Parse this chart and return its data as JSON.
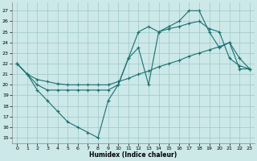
{
  "xlabel": "Humidex (Indice chaleur)",
  "bg_color": "#cce8e8",
  "grid_color": "#9ec8c8",
  "line_color": "#1a7070",
  "xlim": [
    -0.5,
    23.5
  ],
  "ylim": [
    14.5,
    27.8
  ],
  "yticks": [
    15,
    16,
    17,
    18,
    19,
    20,
    21,
    22,
    23,
    24,
    25,
    26,
    27
  ],
  "xticks": [
    0,
    1,
    2,
    3,
    4,
    5,
    6,
    7,
    8,
    9,
    10,
    11,
    12,
    13,
    14,
    15,
    16,
    17,
    18,
    19,
    20,
    21,
    22,
    23
  ],
  "line1_x": [
    0,
    1,
    2,
    3,
    4,
    5,
    6,
    7,
    8,
    9,
    10,
    11,
    12,
    13,
    14,
    15,
    16,
    17,
    18,
    19,
    20,
    21,
    22,
    23
  ],
  "line1_y": [
    22,
    21,
    20.5,
    20.3,
    20.1,
    20.0,
    20.0,
    20.0,
    20.0,
    20.0,
    20.3,
    20.6,
    21.0,
    21.3,
    21.7,
    22.0,
    22.3,
    22.7,
    23.0,
    23.3,
    23.6,
    24.0,
    21.5,
    21.5
  ],
  "line2_x": [
    0,
    1,
    2,
    3,
    4,
    5,
    6,
    7,
    8,
    9,
    10,
    11,
    12,
    13,
    14,
    15,
    16,
    17,
    18,
    19,
    20,
    21,
    22,
    23
  ],
  "line2_y": [
    22,
    21,
    19.5,
    18.5,
    17.5,
    16.5,
    16.0,
    15.5,
    15.0,
    18.5,
    20.0,
    22.5,
    25.0,
    25.5,
    25.0,
    25.5,
    26.0,
    27.0,
    27.0,
    25.0,
    23.5,
    24.0,
    22.5,
    21.5
  ],
  "line3_x": [
    0,
    1,
    2,
    3,
    4,
    5,
    6,
    7,
    8,
    9,
    10,
    11,
    12,
    13,
    14,
    15,
    16,
    17,
    18,
    19,
    20,
    21,
    22,
    23
  ],
  "line3_y": [
    22,
    21,
    20.0,
    19.5,
    19.5,
    19.5,
    19.5,
    19.5,
    19.5,
    19.5,
    20.0,
    22.5,
    23.5,
    20.0,
    25.0,
    25.3,
    25.5,
    25.8,
    26.0,
    25.3,
    25.0,
    22.5,
    21.8,
    21.5
  ]
}
